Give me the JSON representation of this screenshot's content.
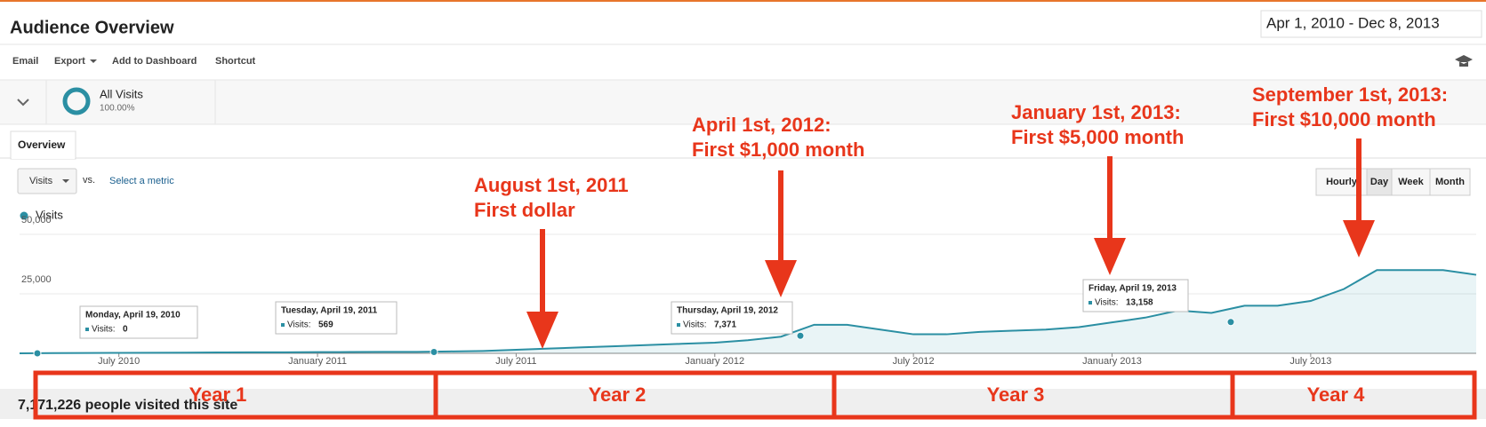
{
  "header": {
    "title": "Audience Overview",
    "date_range": "Apr 1, 2010 - Dec 8, 2013"
  },
  "toolbar": [
    "Email",
    "Export",
    "Add to Dashboard",
    "Shortcut"
  ],
  "segment": {
    "name": "All Visits",
    "share": "100.00%"
  },
  "tab": "Overview",
  "controls": {
    "metric": "Visits",
    "vs": "vs.",
    "compare": "Select a metric",
    "granularity": [
      "Hourly",
      "Day",
      "Week",
      "Month"
    ]
  },
  "summary": "7,171,226 people visited this site",
  "chart_data": {
    "type": "line",
    "grid": true,
    "xlim": [
      "2010-04",
      "2013-12"
    ],
    "xticks": [
      {
        "value": "2010-07",
        "label": "July 2010"
      },
      {
        "value": "2011-01",
        "label": "January 2011"
      },
      {
        "value": "2011-07",
        "label": "July 2011"
      },
      {
        "value": "2012-01",
        "label": "January 2012"
      },
      {
        "value": "2012-07",
        "label": "July 2012"
      },
      {
        "value": "2013-01",
        "label": "January 2013"
      },
      {
        "value": "2013-07",
        "label": "July 2013"
      }
    ],
    "ylim": [
      0,
      50000
    ],
    "yticks": [
      {
        "value": 25000,
        "label": "25,000"
      },
      {
        "value": 50000,
        "label": "50,000"
      }
    ],
    "x": [
      "2010-04",
      "2010-05",
      "2010-06",
      "2010-07",
      "2010-08",
      "2010-09",
      "2010-10",
      "2010-11",
      "2010-12",
      "2011-01",
      "2011-02",
      "2011-03",
      "2011-04",
      "2011-05",
      "2011-06",
      "2011-07",
      "2011-08",
      "2011-09",
      "2011-10",
      "2011-11",
      "2011-12",
      "2012-01",
      "2012-02",
      "2012-03",
      "2012-04",
      "2012-05",
      "2012-06",
      "2012-07",
      "2012-08",
      "2012-09",
      "2012-10",
      "2012-11",
      "2012-12",
      "2013-01",
      "2013-02",
      "2013-03",
      "2013-04",
      "2013-05",
      "2013-06",
      "2013-07",
      "2013-08",
      "2013-09",
      "2013-10",
      "2013-11",
      "2013-12"
    ],
    "series": [
      {
        "name": "Visits",
        "color": "#2b8fa3",
        "values": [
          0,
          100,
          150,
          200,
          250,
          300,
          350,
          400,
          400,
          500,
          550,
          600,
          600,
          800,
          1000,
          1500,
          2000,
          2500,
          3000,
          3500,
          4000,
          4500,
          5500,
          7000,
          12000,
          12000,
          10000,
          8000,
          8000,
          9000,
          9500,
          10000,
          11000,
          13000,
          15000,
          18000,
          17000,
          20000,
          20000,
          22000,
          27000,
          35000,
          35000,
          35000,
          33000
        ]
      }
    ],
    "tooltips": [
      {
        "date": "Monday, April 19, 2010",
        "label": "Visits:",
        "value": 0
      },
      {
        "date": "Tuesday, April 19, 2011",
        "label": "Visits:",
        "value": 569
      },
      {
        "date": "Thursday, April 19, 2012",
        "label": "Visits:",
        "value": 7371,
        "value_label": "7,371"
      },
      {
        "date": "Friday, April 19, 2013",
        "label": "Visits:",
        "value": 13158,
        "value_label": "13,158"
      }
    ],
    "annotations": [
      [
        "August 1st, 2011",
        "First dollar"
      ],
      [
        "April 1st, 2012:",
        "First $1,000 month"
      ],
      [
        "January 1st, 2013:",
        "First $5,000 month"
      ],
      [
        "September 1st, 2013:",
        "First $10,000 month"
      ]
    ],
    "periods": [
      "Year 1",
      "Year 2",
      "Year 3",
      "Year 4"
    ]
  }
}
